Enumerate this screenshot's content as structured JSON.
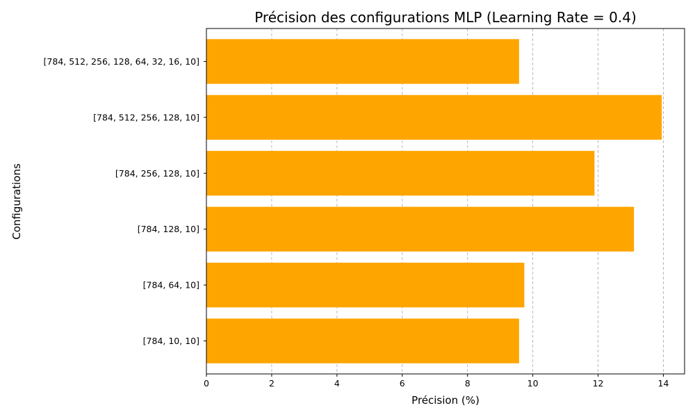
{
  "chart_data": {
    "type": "bar",
    "orientation": "horizontal",
    "title": "Précision des configurations MLP (Learning Rate = 0.4)",
    "xlabel": "Précision (%)",
    "ylabel": "Configurations",
    "categories": [
      "[784, 10, 10]",
      "[784, 64, 10]",
      "[784, 128, 10]",
      "[784, 256, 128, 10]",
      "[784, 512, 256, 128, 10]",
      "[784, 512, 256, 128, 64, 32, 16, 10]"
    ],
    "values": [
      9.58,
      9.74,
      13.1,
      11.89,
      13.95,
      9.58
    ],
    "xlim": [
      0,
      14.65
    ],
    "xticks": [
      0,
      2,
      4,
      6,
      8,
      10,
      12,
      14
    ],
    "grid": "x-dashed",
    "bar_color": "#FFA500"
  }
}
